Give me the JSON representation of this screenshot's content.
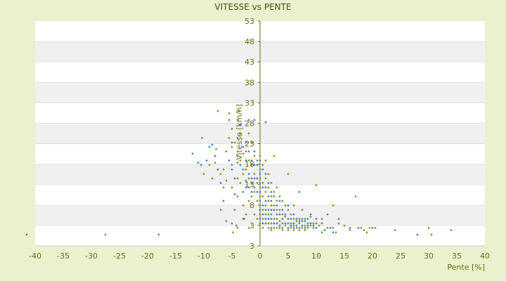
{
  "chart_data": {
    "type": "scatter",
    "title": "VITESSE vs PENTE",
    "xlabel": "Pente [%]",
    "ylabel": "Vitesse [km/h]",
    "xlim": [
      -40,
      40
    ],
    "ylim": [
      3,
      53
    ],
    "xticks": [
      "-40",
      "-35",
      "-30",
      "-25",
      "-20",
      "-15",
      "-10",
      "-5",
      "0",
      "5",
      "10",
      "15",
      "20",
      "25",
      "30",
      "35",
      "40"
    ],
    "yticks": [
      "3",
      "3",
      "8",
      "13",
      "18",
      "23",
      "28",
      "33",
      "38",
      "43",
      "48",
      "53"
    ],
    "grid": "horizontal alternating bands",
    "legend": "none",
    "colors": {
      "background": "#ebf1cf",
      "plot_band_light": "#ffffff",
      "plot_band_dark": "#f0f0f0",
      "axis": "#6b6b14",
      "series_a": "#8a8a1a",
      "series_b": "#2e7fd6"
    },
    "series": [
      {
        "color": "#8a8a1a",
        "points": [
          [
            -41.5,
            5.5
          ],
          [
            -27.5,
            5.5
          ],
          [
            -18,
            5.5
          ],
          [
            -10.3,
            27
          ],
          [
            -10,
            19
          ],
          [
            -9,
            21
          ],
          [
            -8.5,
            18
          ],
          [
            -8,
            21.5
          ],
          [
            -7.8,
            24.5
          ],
          [
            -7.5,
            33
          ],
          [
            -7,
            19
          ],
          [
            -7,
            11
          ],
          [
            -6.5,
            16
          ],
          [
            -6.5,
            20
          ],
          [
            -6,
            17.5
          ],
          [
            -6,
            24
          ],
          [
            -5.5,
            32.5
          ],
          [
            -5.5,
            27
          ],
          [
            -5,
            29
          ],
          [
            -5,
            25
          ],
          [
            -5,
            21
          ],
          [
            -5,
            16
          ],
          [
            -5,
            8
          ],
          [
            -4.8,
            6
          ],
          [
            -4.5,
            11
          ],
          [
            -4.5,
            26
          ],
          [
            -4,
            31
          ],
          [
            -4,
            21.5
          ],
          [
            -4,
            18
          ],
          [
            -4,
            14
          ],
          [
            -4,
            7
          ],
          [
            -3.7,
            33
          ],
          [
            -3.5,
            22
          ],
          [
            -3.5,
            28
          ],
          [
            -3.5,
            17
          ],
          [
            -3,
            23.5
          ],
          [
            -3,
            19
          ],
          [
            -3,
            12
          ],
          [
            -3,
            9
          ],
          [
            -2.5,
            24
          ],
          [
            -2.5,
            20
          ],
          [
            -2.5,
            16
          ],
          [
            -2.5,
            10
          ],
          [
            -2,
            28
          ],
          [
            -2,
            22
          ],
          [
            -2,
            18
          ],
          [
            -2,
            13
          ],
          [
            -2,
            7
          ],
          [
            -1.5,
            26
          ],
          [
            -1.5,
            21
          ],
          [
            -1.5,
            17
          ],
          [
            -1.5,
            14
          ],
          [
            -1,
            23
          ],
          [
            -1,
            19
          ],
          [
            -1,
            15
          ],
          [
            -1,
            10
          ],
          [
            -0.5,
            22
          ],
          [
            -0.5,
            17
          ],
          [
            -0.5,
            13
          ],
          [
            -0.5,
            9
          ],
          [
            0,
            23
          ],
          [
            0,
            20
          ],
          [
            0,
            18
          ],
          [
            0,
            16
          ],
          [
            0,
            14
          ],
          [
            0,
            12
          ],
          [
            0,
            10
          ],
          [
            0,
            8
          ],
          [
            0.5,
            21
          ],
          [
            0.5,
            17
          ],
          [
            0.5,
            14
          ],
          [
            0.5,
            11
          ],
          [
            0.5,
            9
          ],
          [
            0.5,
            7
          ],
          [
            1,
            22
          ],
          [
            1,
            18
          ],
          [
            1,
            15
          ],
          [
            1,
            12
          ],
          [
            1,
            10
          ],
          [
            1,
            8
          ],
          [
            1.5,
            19
          ],
          [
            1.5,
            16
          ],
          [
            1.5,
            13
          ],
          [
            1.5,
            10
          ],
          [
            1.5,
            8
          ],
          [
            1.5,
            7
          ],
          [
            2,
            17
          ],
          [
            2,
            14
          ],
          [
            2,
            12
          ],
          [
            2,
            10
          ],
          [
            2,
            8
          ],
          [
            2,
            6.5
          ],
          [
            2.5,
            23
          ],
          [
            2.5,
            15
          ],
          [
            2.5,
            12
          ],
          [
            2.5,
            9
          ],
          [
            2.5,
            7
          ],
          [
            3,
            16
          ],
          [
            3,
            13
          ],
          [
            3,
            11
          ],
          [
            3,
            9
          ],
          [
            3,
            7
          ],
          [
            3.5,
            14
          ],
          [
            3.5,
            11
          ],
          [
            3.5,
            8.5
          ],
          [
            3.5,
            7
          ],
          [
            4,
            13
          ],
          [
            4,
            10
          ],
          [
            4,
            8
          ],
          [
            4,
            6.5
          ],
          [
            4.5,
            12
          ],
          [
            4.5,
            9.5
          ],
          [
            4.5,
            7.5
          ],
          [
            5,
            19
          ],
          [
            5,
            11
          ],
          [
            5,
            8
          ],
          [
            5,
            6.5
          ],
          [
            5.5,
            10
          ],
          [
            5.5,
            8
          ],
          [
            5.5,
            7
          ],
          [
            6,
            12
          ],
          [
            6,
            9
          ],
          [
            6,
            7.5
          ],
          [
            6,
            6.5
          ],
          [
            6.5,
            8.5
          ],
          [
            6.5,
            7
          ],
          [
            7,
            9
          ],
          [
            7,
            8
          ],
          [
            7,
            6.5
          ],
          [
            7.5,
            11
          ],
          [
            7.5,
            8.5
          ],
          [
            7.5,
            7
          ],
          [
            8,
            9
          ],
          [
            8,
            7.5
          ],
          [
            8,
            6.5
          ],
          [
            8.5,
            8
          ],
          [
            8.5,
            7
          ],
          [
            9,
            9.5
          ],
          [
            9,
            7.5
          ],
          [
            9.5,
            8
          ],
          [
            9.5,
            7
          ],
          [
            10,
            16.5
          ],
          [
            10,
            8
          ],
          [
            10.5,
            7.5
          ],
          [
            11,
            9
          ],
          [
            11,
            6
          ],
          [
            12,
            10
          ],
          [
            12,
            7
          ],
          [
            13,
            12
          ],
          [
            13,
            7
          ],
          [
            13.5,
            6
          ],
          [
            14,
            8
          ],
          [
            15,
            7.5
          ],
          [
            16,
            6.5
          ],
          [
            17,
            14
          ],
          [
            18,
            7
          ],
          [
            18.5,
            6.5
          ],
          [
            19,
            6
          ],
          [
            19.5,
            7
          ],
          [
            20,
            7
          ],
          [
            20.5,
            7
          ],
          [
            24,
            6.5
          ],
          [
            30,
            7
          ],
          [
            30.5,
            5.5
          ],
          [
            34,
            6.5
          ]
        ]
      },
      {
        "color": "#2e7fd6",
        "points": [
          [
            -12,
            23.5
          ],
          [
            -11,
            21.5
          ],
          [
            -10.5,
            21
          ],
          [
            -9.5,
            22
          ],
          [
            -9,
            25
          ],
          [
            -8.5,
            25.5
          ],
          [
            -8,
            23
          ],
          [
            -7.5,
            20
          ],
          [
            -7,
            17
          ],
          [
            -6.5,
            13
          ],
          [
            -6,
            8.5
          ],
          [
            -5.5,
            31
          ],
          [
            -5.5,
            22
          ],
          [
            -5,
            26
          ],
          [
            -5,
            20
          ],
          [
            -4.5,
            18
          ],
          [
            -4.5,
            14.5
          ],
          [
            -4.2,
            7.5
          ],
          [
            -4,
            27
          ],
          [
            -4,
            23
          ],
          [
            -3.8,
            33
          ],
          [
            -3.5,
            30
          ],
          [
            -3.5,
            21
          ],
          [
            -3,
            25
          ],
          [
            -3,
            20
          ],
          [
            -3,
            15
          ],
          [
            -2.8,
            9
          ],
          [
            -2.5,
            26
          ],
          [
            -2.5,
            22
          ],
          [
            -2.5,
            17.5
          ],
          [
            -2,
            31
          ],
          [
            -2,
            24
          ],
          [
            -2,
            19
          ],
          [
            -2,
            16
          ],
          [
            -1.5,
            22
          ],
          [
            -1.5,
            18
          ],
          [
            -1.5,
            15
          ],
          [
            -1,
            31
          ],
          [
            -1,
            24
          ],
          [
            -1,
            21
          ],
          [
            -1,
            18
          ],
          [
            -1,
            16
          ],
          [
            -0.5,
            21
          ],
          [
            -0.5,
            18
          ],
          [
            -0.5,
            15
          ],
          [
            0,
            22
          ],
          [
            0,
            19
          ],
          [
            0,
            17
          ],
          [
            0,
            15
          ],
          [
            0,
            13
          ],
          [
            0,
            11
          ],
          [
            0,
            9
          ],
          [
            0.5,
            20
          ],
          [
            0.5,
            16
          ],
          [
            0.5,
            12
          ],
          [
            0.5,
            10
          ],
          [
            0.5,
            8
          ],
          [
            1,
            30.5
          ],
          [
            1,
            19
          ],
          [
            1,
            16
          ],
          [
            1,
            13
          ],
          [
            1,
            11
          ],
          [
            1,
            9
          ],
          [
            1.5,
            17
          ],
          [
            1.5,
            14
          ],
          [
            1.5,
            11
          ],
          [
            1.5,
            9
          ],
          [
            2,
            15
          ],
          [
            2,
            13
          ],
          [
            2,
            11
          ],
          [
            2,
            9
          ],
          [
            2,
            7
          ],
          [
            2.5,
            14
          ],
          [
            2.5,
            11
          ],
          [
            2.5,
            8
          ],
          [
            3,
            12
          ],
          [
            3,
            10
          ],
          [
            3,
            8
          ],
          [
            3.5,
            13
          ],
          [
            3.5,
            10
          ],
          [
            3.5,
            7.5
          ],
          [
            4,
            11
          ],
          [
            4,
            9
          ],
          [
            4,
            7
          ],
          [
            4.5,
            10
          ],
          [
            4.5,
            8
          ],
          [
            5,
            12
          ],
          [
            5,
            9
          ],
          [
            5,
            7
          ],
          [
            5.5,
            9
          ],
          [
            5.5,
            7.5
          ],
          [
            6,
            10
          ],
          [
            6,
            8
          ],
          [
            6,
            7
          ],
          [
            6.5,
            9
          ],
          [
            6.5,
            7.5
          ],
          [
            7,
            15
          ],
          [
            7,
            8.5
          ],
          [
            7,
            7
          ],
          [
            7.5,
            9
          ],
          [
            7.5,
            7.5
          ],
          [
            8,
            8.5
          ],
          [
            8,
            7
          ],
          [
            8.5,
            9
          ],
          [
            8.5,
            7.5
          ],
          [
            9,
            10
          ],
          [
            9,
            8
          ],
          [
            9.5,
            7.5
          ],
          [
            10,
            9
          ],
          [
            10,
            7
          ],
          [
            11,
            8
          ],
          [
            11.5,
            6.5
          ],
          [
            12.5,
            7
          ],
          [
            13,
            6
          ],
          [
            14,
            9
          ],
          [
            16,
            7
          ],
          [
            17.5,
            7
          ],
          [
            28,
            5.5
          ]
        ]
      }
    ]
  }
}
